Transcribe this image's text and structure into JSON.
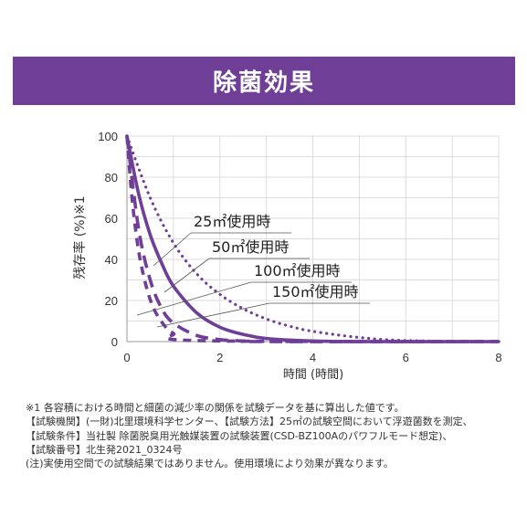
{
  "title": "除菌効果",
  "chart_data": {
    "type": "line",
    "xlabel": "時間 (時間)",
    "ylabel": "残存率 (%)※1",
    "xlim": [
      0,
      8
    ],
    "ylim": [
      0,
      100
    ],
    "xticks": [
      "0",
      "2",
      "4",
      "6",
      "8"
    ],
    "yticks": [
      "0",
      "20",
      "40",
      "60",
      "80",
      "100"
    ],
    "grid": true,
    "series": [
      {
        "name": "25㎡使用時",
        "style": "dotted",
        "x": [
          0,
          0.5,
          1,
          1.5,
          2,
          2.5,
          3,
          3.5,
          4,
          5,
          6,
          8
        ],
        "y": [
          100,
          70,
          48,
          33,
          23,
          16,
          11,
          7.5,
          5,
          2,
          0.5,
          0
        ]
      },
      {
        "name": "50㎡使用時",
        "style": "solid",
        "x": [
          0,
          0.25,
          0.5,
          0.75,
          1,
          1.5,
          2,
          2.5,
          3,
          4,
          5,
          8
        ],
        "y": [
          100,
          72,
          52,
          38,
          27,
          14,
          7,
          3.5,
          1.5,
          0.3,
          0,
          0
        ]
      },
      {
        "name": "100㎡使用時",
        "style": "dashed",
        "x": [
          0,
          0.25,
          0.5,
          0.75,
          1,
          1.5,
          2,
          2.5,
          3,
          8
        ],
        "y": [
          100,
          55,
          30,
          16,
          9,
          3,
          1,
          0.3,
          0,
          0
        ]
      },
      {
        "name": "150㎡使用時",
        "style": "dashed",
        "x": [
          0,
          0.1,
          0.2,
          0.3,
          0.45,
          0.6,
          0.8,
          1,
          1.5,
          8
        ],
        "y": [
          100,
          72,
          52,
          38,
          24,
          15,
          8,
          4,
          0.5,
          0
        ]
      }
    ],
    "annotations": [
      "25㎡使用時",
      "50㎡使用時",
      "100㎡使用時",
      "150㎡使用時"
    ],
    "line_color": "#6f3f98",
    "grid_color": "#dddddd"
  },
  "notes": [
    "※1 各容積における時間と細菌の減少率の関係を試験データを基に算出した値です。",
    "【試験機関】(一財)北里環境科学センター、【試験方法】25㎡の試験空間において浮遊菌数を測定、",
    "【試験条件】当社製 除菌脱臭用光触媒装置の試験装置(CSD-BZ100Aのパワフルモード想定)、",
    "【試験番号】北生発2021_0324号",
    "(注)実使用空間での試験結果ではありません。使用環境により効果が異なります。"
  ]
}
